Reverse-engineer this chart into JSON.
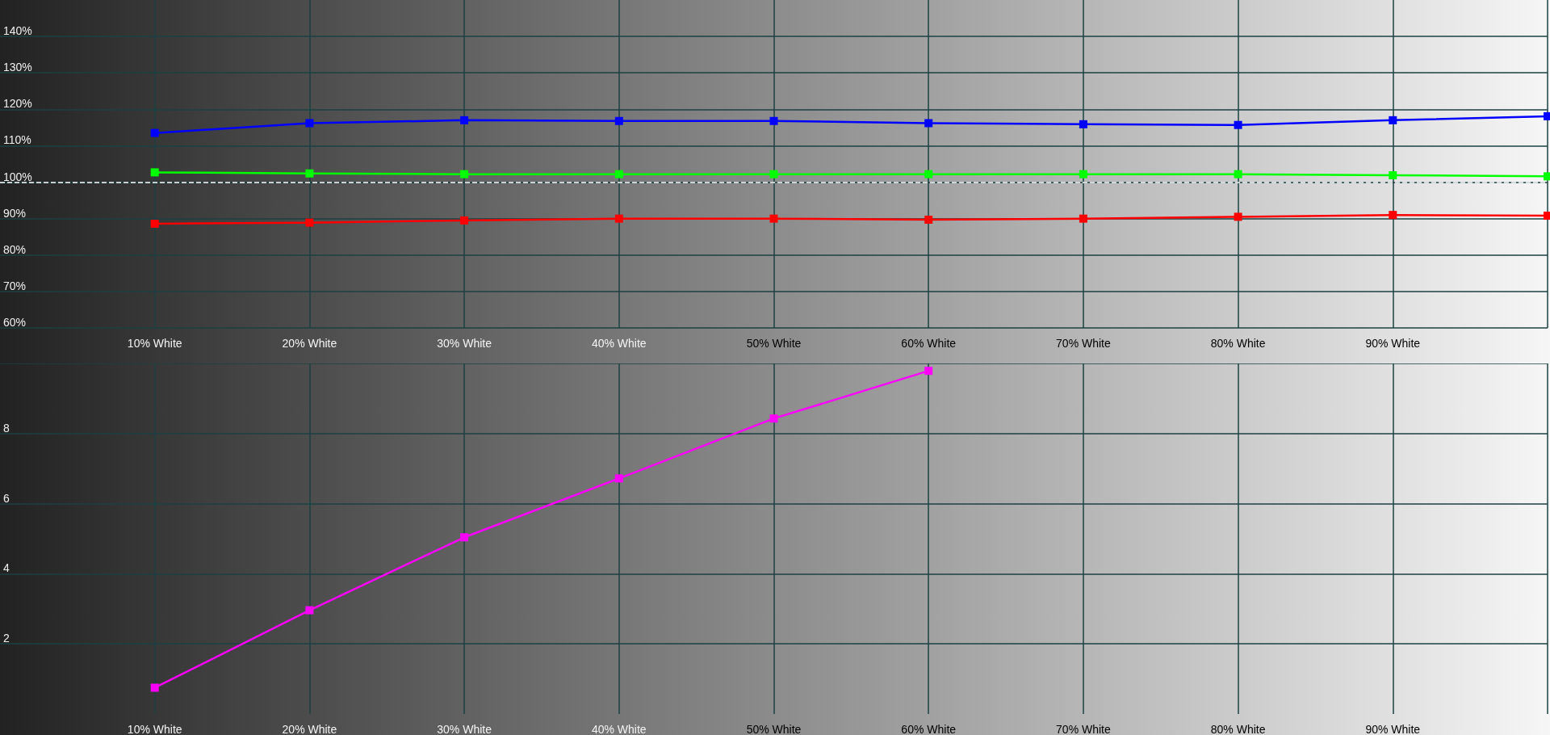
{
  "chart_data": [
    {
      "type": "line",
      "x": [
        10,
        20,
        30,
        40,
        50,
        60,
        70,
        80,
        90,
        100
      ],
      "series": [
        {
          "color": "#0000ff",
          "values": [
            113.5,
            116.2,
            117,
            116.8,
            116.8,
            116.2,
            115.9,
            115.7,
            117,
            118.1
          ]
        },
        {
          "color": "#00ff00",
          "values": [
            102.7,
            102.4,
            102.2,
            102.2,
            102.2,
            102.2,
            102.2,
            102.2,
            101.9,
            101.6
          ]
        },
        {
          "color": "#ff0000",
          "values": [
            88.6,
            88.9,
            89.5,
            90,
            90,
            89.7,
            90,
            90.5,
            91,
            90.8
          ]
        }
      ],
      "xlim": [
        0,
        100
      ],
      "xticks": [
        {
          "value": 10,
          "label": "10% White"
        },
        {
          "value": 20,
          "label": "20% White"
        },
        {
          "value": 30,
          "label": "30% White"
        },
        {
          "value": 40,
          "label": "40% White"
        },
        {
          "value": 50,
          "label": "50% White"
        },
        {
          "value": 60,
          "label": "60% White"
        },
        {
          "value": 70,
          "label": "70% White"
        },
        {
          "value": 80,
          "label": "80% White"
        },
        {
          "value": 90,
          "label": "90% White"
        },
        {
          "value": 100,
          "label": null
        }
      ],
      "ylim": [
        60,
        150
      ],
      "yticks": [
        {
          "value": 60,
          "label": "60%"
        },
        {
          "value": 70,
          "label": "70%"
        },
        {
          "value": 80,
          "label": "80%"
        },
        {
          "value": 90,
          "label": "90%"
        },
        {
          "value": 100,
          "label": "100%"
        },
        {
          "value": 110,
          "label": "110%"
        },
        {
          "value": 120,
          "label": "120%"
        },
        {
          "value": 130,
          "label": "130%"
        },
        {
          "value": 140,
          "label": "140%"
        }
      ],
      "ref_lines": [
        {
          "axis": "y",
          "value": 100,
          "color": "#ffffff",
          "line_style": "dashed"
        }
      ],
      "grid": true,
      "marker": "square",
      "line_style": "solid"
    },
    {
      "type": "line",
      "x": [
        10,
        20,
        30,
        40,
        50,
        60
      ],
      "series": [
        {
          "color": "#ff00ff",
          "values": [
            0.75,
            2.96,
            5.04,
            6.72,
            8.43,
            9.79
          ]
        }
      ],
      "xlim": [
        0,
        100
      ],
      "xticks": [
        {
          "value": 10,
          "label": "10% White"
        },
        {
          "value": 20,
          "label": "20% White"
        },
        {
          "value": 30,
          "label": "30% White"
        },
        {
          "value": 40,
          "label": "40% White"
        },
        {
          "value": 50,
          "label": "50% White"
        },
        {
          "value": 60,
          "label": "60% White"
        },
        {
          "value": 70,
          "label": "70% White"
        },
        {
          "value": 80,
          "label": "80% White"
        },
        {
          "value": 90,
          "label": "90% White"
        },
        {
          "value": 100,
          "label": null
        }
      ],
      "ylim": [
        0,
        10
      ],
      "yticks": [
        2,
        4,
        6,
        8,
        {
          "value": 10,
          "label": null
        }
      ],
      "grid": true,
      "marker": "square",
      "line_style": "solid"
    }
  ]
}
